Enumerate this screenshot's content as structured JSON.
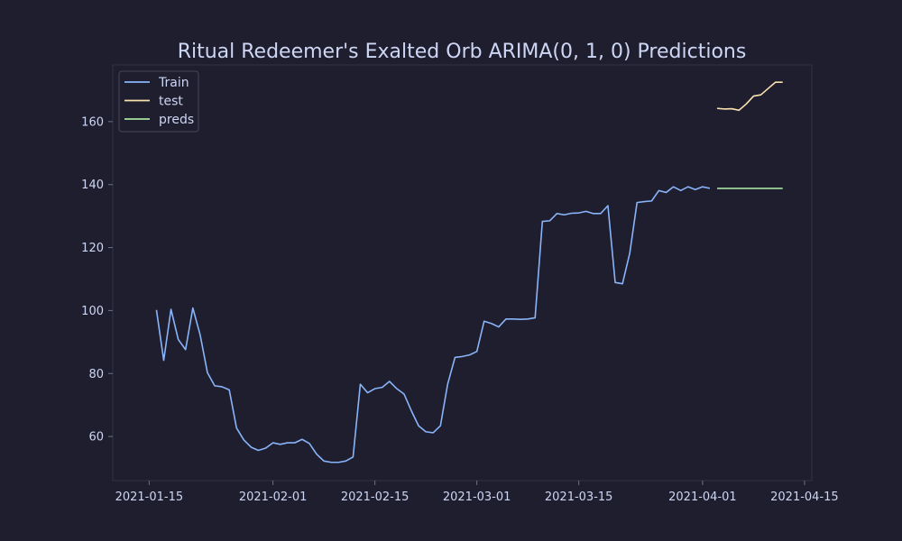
{
  "chart_data": {
    "type": "line",
    "title": "Ritual Redeemer's Exalted Orb ARIMA(0, 1, 0) Predictions",
    "xlabel": "",
    "ylabel": "",
    "x_axis": {
      "type": "date",
      "range": [
        "2021-01-10",
        "2021-04-16"
      ],
      "ticks": [
        "2021-01-15",
        "2021-02-01",
        "2021-02-15",
        "2021-03-01",
        "2021-03-15",
        "2021-04-01",
        "2021-04-15"
      ]
    },
    "y_axis": {
      "range": [
        46,
        178
      ],
      "ticks": [
        60,
        80,
        100,
        120,
        140,
        160
      ]
    },
    "grid": false,
    "legend_position": "top-left",
    "series": [
      {
        "name": "Train",
        "color": "#89b4fa",
        "start_date": "2021-01-16",
        "values": [
          100.2,
          84.2,
          100.4,
          90.8,
          87.6,
          100.8,
          92.3,
          80.3,
          76.1,
          75.8,
          74.8,
          62.7,
          58.9,
          56.6,
          55.6,
          56.3,
          58.0,
          57.5,
          58.0,
          58.0,
          59.1,
          57.8,
          54.4,
          52.2,
          51.8,
          51.8,
          52.2,
          53.5,
          76.6,
          73.9,
          75.2,
          75.6,
          77.5,
          75.2,
          73.5,
          68.2,
          63.4,
          61.5,
          61.2,
          63.4,
          76.7,
          85.1,
          85.4,
          85.9,
          87.0,
          96.6,
          95.9,
          94.8,
          97.3,
          97.3,
          97.2,
          97.3,
          97.7,
          128.3,
          128.5,
          130.8,
          130.4,
          130.9,
          131.0,
          131.5,
          130.8,
          130.8,
          133.3,
          108.9,
          108.5,
          118.2,
          134.3,
          134.6,
          134.8,
          138.1,
          137.5,
          139.3,
          138.1,
          139.3,
          138.4,
          139.3,
          138.8
        ]
      },
      {
        "name": "test",
        "color": "#f9e2af",
        "start_date": "2021-04-03",
        "values": [
          164.2,
          164.0,
          164.1,
          163.6,
          165.6,
          168.1,
          168.5,
          170.5,
          172.5,
          172.5
        ]
      },
      {
        "name": "preds",
        "color": "#a6e3a1",
        "start_date": "2021-04-03",
        "values": [
          138.8,
          138.8,
          138.8,
          138.8,
          138.8,
          138.8,
          138.8,
          138.8,
          138.8,
          138.8
        ]
      }
    ]
  }
}
